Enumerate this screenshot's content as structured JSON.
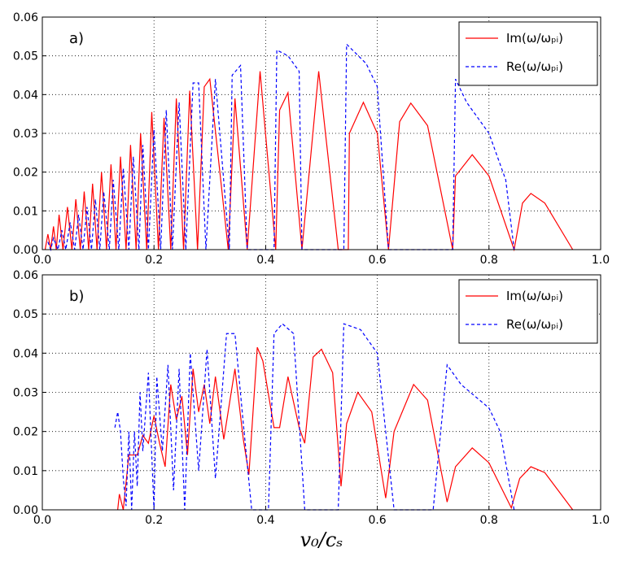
{
  "chart_data": [
    {
      "type": "line",
      "annotation": "a)",
      "xlim": [
        0,
        1
      ],
      "ylim": [
        0,
        0.06
      ],
      "grid": true,
      "legend": "upper right",
      "xticks": [
        {
          "value": 0,
          "label": "0.0"
        },
        {
          "value": 0.2,
          "label": "0.2"
        },
        {
          "value": 0.4,
          "label": "0.4"
        },
        {
          "value": 0.6,
          "label": "0.6"
        },
        {
          "value": 0.8,
          "label": "0.8"
        },
        {
          "value": 1,
          "label": "1.0"
        }
      ],
      "yticks": [
        {
          "value": 0,
          "label": "0.00"
        },
        {
          "value": 0.01,
          "label": "0.01"
        },
        {
          "value": 0.02,
          "label": "0.02"
        },
        {
          "value": 0.03,
          "label": "0.03"
        },
        {
          "value": 0.04,
          "label": "0.04"
        },
        {
          "value": 0.05,
          "label": "0.05"
        },
        {
          "value": 0.06,
          "label": "0.06"
        }
      ],
      "series": [
        {
          "name": "Im(ω/ωₚᵢ)",
          "color": "#ff0000",
          "linestyle": "solid",
          "x": [
            0.005,
            0.01,
            0.015,
            0.02,
            0.025,
            0.03,
            0.037,
            0.045,
            0.053,
            0.06,
            0.068,
            0.075,
            0.083,
            0.09,
            0.098,
            0.106,
            0.115,
            0.123,
            0.132,
            0.14,
            0.15,
            0.158,
            0.168,
            0.176,
            0.187,
            0.196,
            0.208,
            0.218,
            0.23,
            0.24,
            0.253,
            0.264,
            0.278,
            0.29,
            0.3,
            0.333,
            0.345,
            0.367,
            0.39,
            0.418,
            0.425,
            0.44,
            0.465,
            0.495,
            0.53,
            0.548,
            0.55,
            0.575,
            0.6,
            0.62,
            0.64,
            0.66,
            0.69,
            0.735,
            0.74,
            0.77,
            0.8,
            0.845,
            0.86,
            0.875,
            0.9,
            0.95
          ],
          "values": [
            0,
            0.004,
            0,
            0.006,
            0,
            0.009,
            0,
            0.011,
            0,
            0.013,
            0,
            0.015,
            0,
            0.017,
            0,
            0.02,
            0,
            0.022,
            0,
            0.024,
            0,
            0.027,
            0,
            0.03,
            0,
            0.0355,
            0,
            0.034,
            0,
            0.039,
            0,
            0.041,
            0,
            0.042,
            0.044,
            0,
            0.039,
            0,
            0.046,
            0,
            0.036,
            0.0405,
            0,
            0.046,
            0,
            0,
            0.03,
            0.038,
            0.03,
            0,
            0.033,
            0.0378,
            0.032,
            0,
            0.019,
            0.0245,
            0.019,
            0,
            0.012,
            0.0145,
            0.012,
            0
          ]
        },
        {
          "name": "Re(ω/ωₚᵢ)",
          "color": "#0000ff",
          "linestyle": "dashed",
          "x": [
            0.01,
            0.015,
            0.02,
            0.028,
            0.035,
            0.042,
            0.05,
            0.058,
            0.065,
            0.073,
            0.08,
            0.088,
            0.095,
            0.103,
            0.11,
            0.12,
            0.127,
            0.137,
            0.145,
            0.155,
            0.163,
            0.173,
            0.18,
            0.19,
            0.2,
            0.212,
            0.222,
            0.233,
            0.245,
            0.257,
            0.27,
            0.28,
            0.293,
            0.31,
            0.335,
            0.34,
            0.355,
            0.367,
            0.415,
            0.42,
            0.44,
            0.46,
            0.465,
            0.54,
            0.545,
            0.58,
            0.6,
            0.62,
            0.735,
            0.74,
            0.76,
            0.8,
            0.83,
            0.845
          ],
          "values": [
            0.002,
            0,
            0.003,
            0,
            0.005,
            0,
            0.007,
            0,
            0.009,
            0,
            0.011,
            0,
            0.013,
            0,
            0.015,
            0,
            0.018,
            0,
            0.021,
            0,
            0.024,
            0,
            0.027,
            0,
            0.031,
            0,
            0.036,
            0,
            0.038,
            0,
            0.043,
            0.043,
            0,
            0.044,
            0,
            0.045,
            0.0475,
            0,
            0,
            0.0515,
            0.05,
            0.046,
            0,
            0,
            0.053,
            0.048,
            0.042,
            0,
            0,
            0.044,
            0.038,
            0.03,
            0.018,
            0
          ]
        }
      ]
    },
    {
      "type": "line",
      "annotation": "b)",
      "xlabel": "v₀/cₛ",
      "xlim": [
        0,
        1
      ],
      "ylim": [
        0,
        0.06
      ],
      "grid": true,
      "legend": "upper right",
      "xticks": [
        {
          "value": 0,
          "label": "0.0"
        },
        {
          "value": 0.2,
          "label": "0.2"
        },
        {
          "value": 0.4,
          "label": "0.4"
        },
        {
          "value": 0.6,
          "label": "0.6"
        },
        {
          "value": 0.8,
          "label": "0.8"
        },
        {
          "value": 1,
          "label": "1.0"
        }
      ],
      "yticks": [
        {
          "value": 0,
          "label": "0.00"
        },
        {
          "value": 0.01,
          "label": "0.01"
        },
        {
          "value": 0.02,
          "label": "0.02"
        },
        {
          "value": 0.03,
          "label": "0.03"
        },
        {
          "value": 0.04,
          "label": "0.04"
        },
        {
          "value": 0.05,
          "label": "0.05"
        },
        {
          "value": 0.06,
          "label": "0.06"
        }
      ],
      "series": [
        {
          "name": "Im(ω/ωₚᵢ)",
          "color": "#ff0000",
          "linestyle": "solid",
          "x": [
            0.135,
            0.138,
            0.145,
            0.155,
            0.17,
            0.18,
            0.19,
            0.2,
            0.21,
            0.22,
            0.23,
            0.24,
            0.25,
            0.26,
            0.27,
            0.28,
            0.29,
            0.3,
            0.31,
            0.325,
            0.345,
            0.36,
            0.37,
            0.385,
            0.395,
            0.415,
            0.425,
            0.44,
            0.46,
            0.47,
            0.485,
            0.5,
            0.52,
            0.535,
            0.545,
            0.565,
            0.59,
            0.615,
            0.63,
            0.665,
            0.69,
            0.725,
            0.74,
            0.77,
            0.8,
            0.84,
            0.855,
            0.875,
            0.9,
            0.95
          ],
          "values": [
            0,
            0.004,
            0,
            0.014,
            0.014,
            0.019,
            0.017,
            0.024,
            0.017,
            0.011,
            0.032,
            0.023,
            0.029,
            0.014,
            0.036,
            0.025,
            0.032,
            0.022,
            0.034,
            0.018,
            0.036,
            0.018,
            0.009,
            0.0415,
            0.038,
            0.021,
            0.021,
            0.034,
            0.021,
            0.017,
            0.039,
            0.041,
            0.035,
            0.006,
            0.022,
            0.03,
            0.025,
            0.003,
            0.02,
            0.032,
            0.028,
            0.002,
            0.011,
            0.0158,
            0.012,
            0.0005,
            0.008,
            0.011,
            0.0095,
            0
          ]
        },
        {
          "name": "Re(ω/ωₚᵢ)",
          "color": "#0000ff",
          "linestyle": "dashed",
          "x": [
            0.13,
            0.135,
            0.14,
            0.145,
            0.15,
            0.155,
            0.16,
            0.165,
            0.17,
            0.175,
            0.18,
            0.19,
            0.2,
            0.205,
            0.215,
            0.225,
            0.235,
            0.245,
            0.255,
            0.265,
            0.28,
            0.295,
            0.31,
            0.33,
            0.345,
            0.36,
            0.375,
            0.405,
            0.415,
            0.43,
            0.45,
            0.47,
            0.53,
            0.54,
            0.57,
            0.6,
            0.63,
            0.7,
            0.725,
            0.75,
            0.8,
            0.82,
            0.845
          ],
          "values": [
            0.021,
            0.025,
            0.02,
            0.008,
            0.001,
            0.02,
            0,
            0.02,
            0.006,
            0.03,
            0.015,
            0.035,
            0,
            0.034,
            0.015,
            0.037,
            0.005,
            0.036,
            0,
            0.04,
            0.01,
            0.041,
            0.008,
            0.045,
            0.045,
            0.022,
            0,
            0,
            0.045,
            0.0475,
            0.045,
            0,
            0,
            0.0475,
            0.046,
            0.04,
            0,
            0,
            0.037,
            0.032,
            0.026,
            0.02,
            0
          ]
        }
      ]
    }
  ]
}
